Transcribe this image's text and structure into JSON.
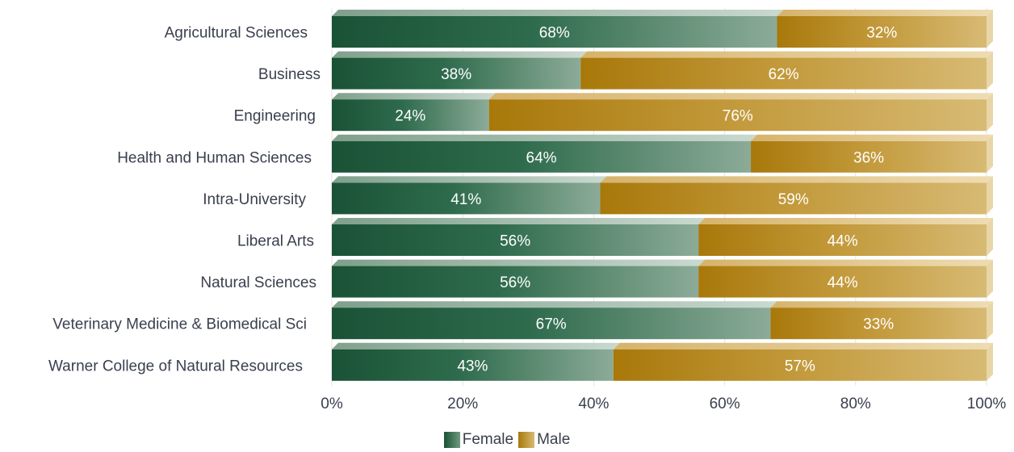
{
  "chart_data": {
    "type": "bar",
    "orientation": "horizontal",
    "stacked": true,
    "percent": true,
    "categories": [
      "Agricultural Sciences",
      "Business",
      "Engineering",
      "Health and Human Sciences",
      "Intra-University",
      "Liberal Arts",
      "Natural Sciences",
      "Veterinary Medicine & Biomedical Sci",
      "Warner College of Natural Resources"
    ],
    "series": [
      {
        "name": "Female",
        "color": "#1e5a3c",
        "values": [
          68,
          38,
          24,
          64,
          41,
          56,
          56,
          67,
          43
        ],
        "labels": [
          "68%",
          "38%",
          "24%",
          "64%",
          "41%",
          "56%",
          "56%",
          "67%",
          "43%"
        ]
      },
      {
        "name": "Male",
        "color": "#b8860b",
        "values": [
          32,
          62,
          76,
          36,
          59,
          44,
          44,
          33,
          57
        ],
        "labels": [
          "32%",
          "62%",
          "76%",
          "36%",
          "59%",
          "44%",
          "44%",
          "33%",
          "57%"
        ]
      }
    ],
    "xlim": [
      0,
      100
    ],
    "x_ticks": [
      0,
      20,
      40,
      60,
      80,
      100
    ],
    "x_tick_labels": [
      "0%",
      "20%",
      "40%",
      "60%",
      "80%",
      "100%"
    ],
    "grid": true,
    "legend": "bottom"
  }
}
